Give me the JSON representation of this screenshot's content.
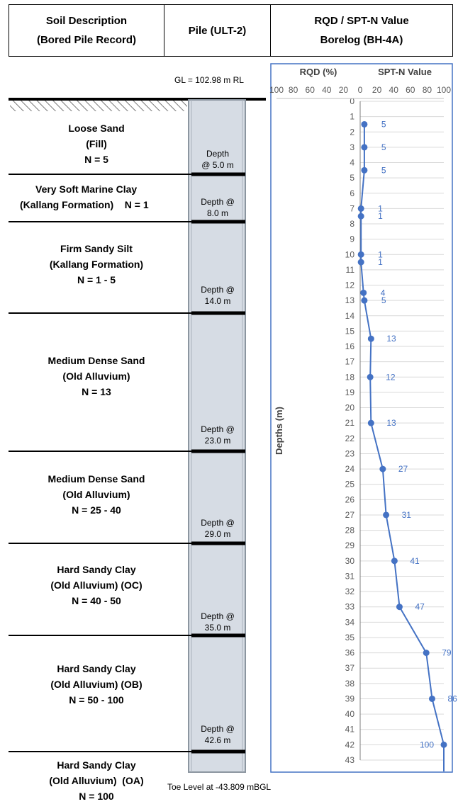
{
  "headers": {
    "soil_line1": "Soil Description",
    "soil_line2": "(Bored Pile Record)",
    "pile": "Pile (ULT-2)",
    "chart_line1": "RQD / SPT-N Value",
    "chart_line2": "Borelog (BH-4A)"
  },
  "ground_level": "GL = 102.98 m RL",
  "toe_level": "Toe Level at -43.809 mBGL",
  "layers": [
    {
      "lines": [
        "Loose Sand",
        "(Fill)",
        "N = 5"
      ],
      "depth_label": [
        "Depth",
        "@ 5.0 m"
      ]
    },
    {
      "lines": [
        "Very Soft Marine Clay",
        "(Kallang Formation)    N = 1"
      ],
      "depth_label": [
        "Depth @",
        "8.0 m"
      ]
    },
    {
      "lines": [
        "Firm Sandy Silt",
        "(Kallang Formation)",
        "N = 1 - 5"
      ],
      "depth_label": [
        "Depth @",
        "14.0 m"
      ]
    },
    {
      "lines": [
        "Medium Dense Sand",
        "(Old Alluvium)",
        "N = 13"
      ],
      "depth_label": [
        "Depth @",
        "23.0 m"
      ]
    },
    {
      "lines": [
        "Medium Dense Sand",
        "(Old Alluvium)",
        "N = 25 - 40"
      ],
      "depth_label": [
        "Depth @",
        "29.0 m"
      ]
    },
    {
      "lines": [
        "Hard Sandy Clay",
        "(Old Alluvium) (OC)",
        "N = 40 - 50"
      ],
      "depth_label": [
        "Depth @",
        "35.0 m"
      ]
    },
    {
      "lines": [
        "Hard Sandy Clay",
        "(Old Alluvium) (OB)",
        "N = 50 - 100"
      ],
      "depth_label": [
        "Depth @",
        "42.6 m"
      ]
    },
    {
      "lines": [
        "Hard Sandy Clay",
        "(Old Alluvium)  (OA)",
        "N = 100"
      ],
      "depth_label": []
    }
  ],
  "colors": {
    "series": "#4472c4",
    "pile_fill": "#d6dce4",
    "pile_border": "#8c96a0",
    "grid": "#d9d9d9",
    "tick_text": "#595959",
    "label_text": "#4472c4"
  },
  "chart_data": {
    "type": "line",
    "rqd_label": "RQD (%)",
    "spt_label": "SPT-N Value",
    "ylabel": "Depths (m)",
    "x_ticks_rqd": [
      "100",
      "80",
      "60",
      "40",
      "20"
    ],
    "x_ticks_spt": [
      "0",
      "20",
      "40",
      "60",
      "80",
      "100"
    ],
    "xlim": [
      -100,
      100
    ],
    "ylim": [
      0,
      43
    ],
    "y_ticks": [
      0,
      1,
      2,
      3,
      4,
      5,
      6,
      7,
      8,
      9,
      10,
      11,
      12,
      13,
      14,
      15,
      16,
      17,
      18,
      19,
      20,
      21,
      22,
      23,
      24,
      25,
      26,
      27,
      28,
      29,
      30,
      31,
      32,
      33,
      34,
      35,
      36,
      37,
      38,
      39,
      40,
      41,
      42,
      43
    ],
    "grid": true,
    "series": [
      {
        "points": [
          {
            "depth": 1.5,
            "n": 5,
            "label": "5"
          },
          {
            "depth": 3,
            "n": 5,
            "label": "5"
          },
          {
            "depth": 4.5,
            "n": 5,
            "label": "5"
          },
          {
            "depth": 7,
            "n": 1,
            "label": "1"
          },
          {
            "depth": 7.5,
            "n": 1,
            "label": "1"
          },
          {
            "depth": 10,
            "n": 1,
            "label": "1"
          },
          {
            "depth": 10.5,
            "n": 1,
            "label": "1"
          },
          {
            "depth": 12.5,
            "n": 4,
            "label": "4"
          },
          {
            "depth": 13,
            "n": 5,
            "label": "5"
          },
          {
            "depth": 15.5,
            "n": 13,
            "label": "13"
          },
          {
            "depth": 18,
            "n": 12,
            "label": "12"
          },
          {
            "depth": 21,
            "n": 13,
            "label": "13"
          },
          {
            "depth": 24,
            "n": 27,
            "label": "27"
          },
          {
            "depth": 27,
            "n": 31,
            "label": "31"
          },
          {
            "depth": 30,
            "n": 41,
            "label": "41"
          },
          {
            "depth": 33,
            "n": 47,
            "label": "47"
          },
          {
            "depth": 36,
            "n": 79,
            "label": "79"
          },
          {
            "depth": 39,
            "n": 86,
            "label": "86"
          },
          {
            "depth": 42,
            "n": 100,
            "label": "100"
          }
        ]
      }
    ]
  }
}
